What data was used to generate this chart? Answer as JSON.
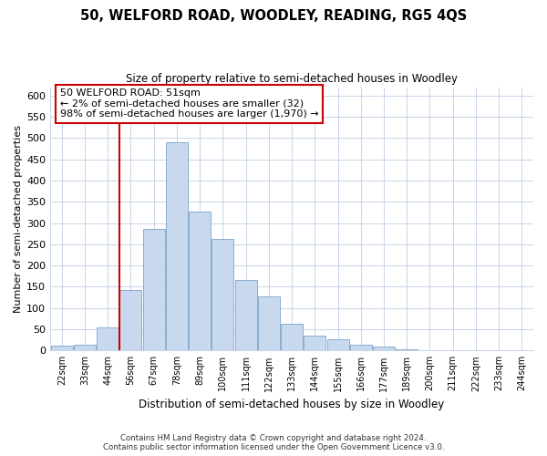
{
  "title": "50, WELFORD ROAD, WOODLEY, READING, RG5 4QS",
  "subtitle": "Size of property relative to semi-detached houses in Woodley",
  "xlabel": "Distribution of semi-detached houses by size in Woodley",
  "ylabel": "Number of semi-detached properties",
  "categories": [
    "22sqm",
    "33sqm",
    "44sqm",
    "56sqm",
    "67sqm",
    "78sqm",
    "89sqm",
    "100sqm",
    "111sqm",
    "122sqm",
    "133sqm",
    "144sqm",
    "155sqm",
    "166sqm",
    "177sqm",
    "189sqm",
    "200sqm",
    "211sqm",
    "222sqm",
    "233sqm",
    "244sqm"
  ],
  "values": [
    12,
    13,
    55,
    143,
    287,
    490,
    328,
    263,
    166,
    127,
    63,
    36,
    27,
    13,
    9,
    2,
    1,
    1,
    1,
    1,
    1
  ],
  "bar_color": "#c8d9ef",
  "bar_edge_color": "#7ba3cc",
  "vline_x_index": 3,
  "vline_color": "#cc0000",
  "annotation_box_line1": "50 WELFORD ROAD: 51sqm",
  "annotation_box_line2": "← 2% of semi-detached houses are smaller (32)",
  "annotation_box_line3": "98% of semi-detached houses are larger (1,970) →",
  "annotation_box_edge_color": "#cc0000",
  "ylim": [
    0,
    620
  ],
  "yticks": [
    0,
    50,
    100,
    150,
    200,
    250,
    300,
    350,
    400,
    450,
    500,
    550,
    600
  ],
  "footer_line1": "Contains HM Land Registry data © Crown copyright and database right 2024.",
  "footer_line2": "Contains public sector information licensed under the Open Government Licence v3.0.",
  "bg_color": "#ffffff",
  "grid_color": "#c8d4e8"
}
